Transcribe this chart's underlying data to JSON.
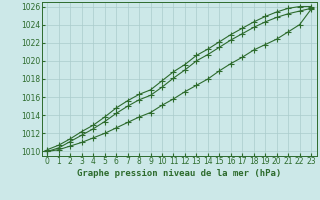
{
  "x": [
    0,
    1,
    2,
    3,
    4,
    5,
    6,
    7,
    8,
    9,
    10,
    11,
    12,
    13,
    14,
    15,
    16,
    17,
    18,
    19,
    20,
    21,
    22,
    23
  ],
  "line_top": [
    1010.2,
    1010.7,
    1011.4,
    1012.2,
    1012.9,
    1013.8,
    1014.8,
    1015.6,
    1016.3,
    1016.8,
    1017.8,
    1018.8,
    1019.6,
    1020.6,
    1021.3,
    1022.1,
    1022.9,
    1023.6,
    1024.3,
    1024.9,
    1025.4,
    1025.8,
    1026.0,
    1026.0
  ],
  "line_mid": [
    1010.0,
    1010.4,
    1011.1,
    1011.8,
    1012.5,
    1013.3,
    1014.2,
    1015.0,
    1015.7,
    1016.2,
    1017.1,
    1018.1,
    1019.0,
    1020.0,
    1020.7,
    1021.5,
    1022.3,
    1023.0,
    1023.7,
    1024.3,
    1024.8,
    1025.2,
    1025.5,
    1025.8
  ],
  "line_bot": [
    1010.0,
    1010.2,
    1010.6,
    1011.0,
    1011.5,
    1012.0,
    1012.6,
    1013.2,
    1013.8,
    1014.3,
    1015.1,
    1015.8,
    1016.6,
    1017.3,
    1018.0,
    1018.9,
    1019.7,
    1020.4,
    1021.2,
    1021.8,
    1022.4,
    1023.2,
    1024.0,
    1025.7
  ],
  "bg_color": "#cce8e8",
  "grid_color": "#aacccc",
  "line_color": "#2d6b2d",
  "xlabel": "Graphe pression niveau de la mer (hPa)",
  "ylim": [
    1010,
    1026
  ],
  "xlim": [
    0,
    23
  ],
  "yticks": [
    1010,
    1012,
    1014,
    1016,
    1018,
    1020,
    1022,
    1024,
    1026
  ],
  "xticks": [
    0,
    1,
    2,
    3,
    4,
    5,
    6,
    7,
    8,
    9,
    10,
    11,
    12,
    13,
    14,
    15,
    16,
    17,
    18,
    19,
    20,
    21,
    22,
    23
  ],
  "tick_fontsize": 5.5,
  "xlabel_fontsize": 6.5
}
